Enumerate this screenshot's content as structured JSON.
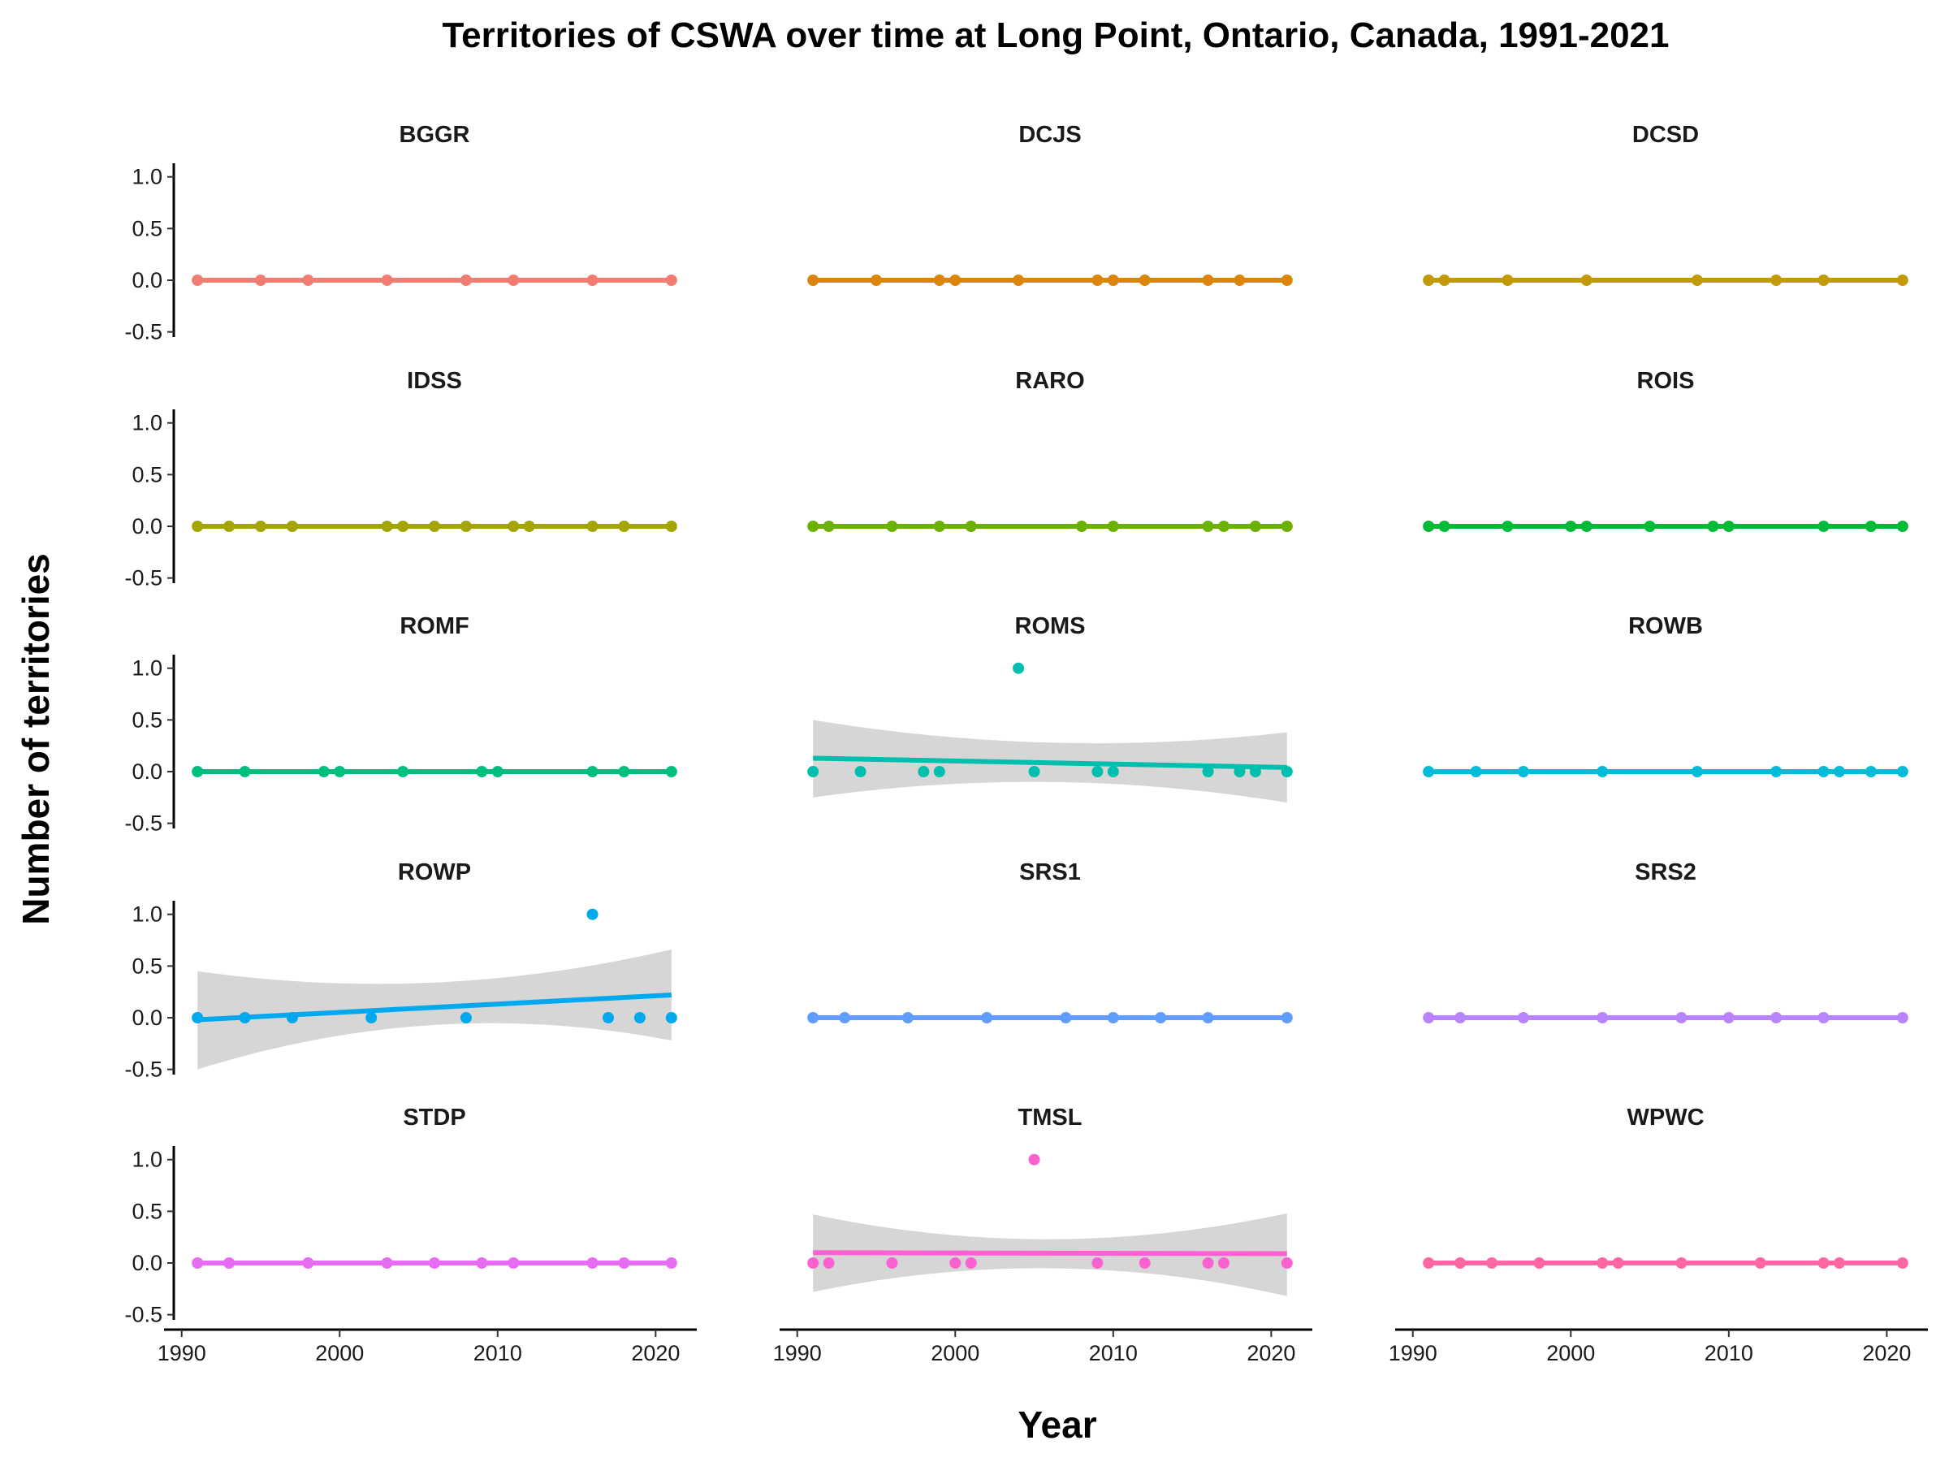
{
  "chart_data": {
    "type": "scatter",
    "title": "Territories of CSWA over time at Long Point, Ontario, Canada, 1991-2021",
    "xlabel": "Year",
    "ylabel": "Number of territories",
    "xlim": [
      1989.5,
      2022.5
    ],
    "ylim": [
      -0.55,
      1.1
    ],
    "x_ticks": [
      1990,
      2000,
      2010,
      2020
    ],
    "y_ticks": [
      1.0,
      0.5,
      0.0,
      -0.5
    ],
    "y_tick_labels": [
      "1.0",
      "0.5",
      "0.0",
      "-0.5"
    ],
    "grid": false,
    "legend": "none",
    "panels": [
      {
        "name": "BGGR",
        "color": "#F07C72",
        "x": [
          1991,
          1995,
          1998,
          2003,
          2008,
          2011,
          2016,
          2021
        ],
        "y": [
          0,
          0,
          0,
          0,
          0,
          0,
          0,
          0
        ],
        "trend": [
          0,
          0
        ],
        "band": null
      },
      {
        "name": "DCJS",
        "color": "#DB850D",
        "x": [
          1991,
          1995,
          1999,
          2000,
          2004,
          2009,
          2010,
          2012,
          2016,
          2018,
          2021
        ],
        "y": [
          0,
          0,
          0,
          0,
          0,
          0,
          0,
          0,
          0,
          0,
          0
        ],
        "trend": [
          0,
          0
        ],
        "band": null
      },
      {
        "name": "DCSD",
        "color": "#C29A06",
        "x": [
          1991,
          1992,
          1996,
          2001,
          2008,
          2013,
          2016,
          2021
        ],
        "y": [
          0,
          0,
          0,
          0,
          0,
          0,
          0,
          0
        ],
        "trend": [
          0,
          0
        ],
        "band": null
      },
      {
        "name": "IDSS",
        "color": "#A3A500",
        "x": [
          1991,
          1993,
          1995,
          1997,
          2003,
          2004,
          2006,
          2008,
          2011,
          2012,
          2016,
          2018,
          2021
        ],
        "y": [
          0,
          0,
          0,
          0,
          0,
          0,
          0,
          0,
          0,
          0,
          0,
          0,
          0
        ],
        "trend": [
          0,
          0
        ],
        "band": null
      },
      {
        "name": "RARO",
        "color": "#6BB100",
        "x": [
          1991,
          1992,
          1996,
          1999,
          2001,
          2008,
          2010,
          2016,
          2017,
          2019,
          2021
        ],
        "y": [
          0,
          0,
          0,
          0,
          0,
          0,
          0,
          0,
          0,
          0,
          0
        ],
        "trend": [
          0,
          0
        ],
        "band": null
      },
      {
        "name": "ROIS",
        "color": "#00BA38",
        "x": [
          1991,
          1992,
          1996,
          2000,
          2001,
          2005,
          2009,
          2010,
          2016,
          2019,
          2021
        ],
        "y": [
          0,
          0,
          0,
          0,
          0,
          0,
          0,
          0,
          0,
          0,
          0
        ],
        "trend": [
          0,
          0
        ],
        "band": null
      },
      {
        "name": "ROMF",
        "color": "#00BF7D",
        "x": [
          1991,
          1994,
          1999,
          2000,
          2004,
          2009,
          2010,
          2016,
          2018,
          2021
        ],
        "y": [
          0,
          0,
          0,
          0,
          0,
          0,
          0,
          0,
          0,
          0
        ],
        "trend": [
          0,
          0
        ],
        "band": null
      },
      {
        "name": "ROMS",
        "color": "#00BFAE",
        "x": [
          1991,
          1994,
          1998,
          1999,
          2004,
          2005,
          2009,
          2010,
          2016,
          2018,
          2019,
          2021
        ],
        "y": [
          0,
          0,
          0,
          0,
          1,
          0,
          0,
          0,
          0,
          0,
          0,
          0
        ],
        "trend": [
          0.13,
          0.04
        ],
        "band": {
          "upper": [
            0.5,
            0.28,
            0.38
          ],
          "lower": [
            -0.25,
            -0.1,
            -0.3
          ]
        }
      },
      {
        "name": "ROWB",
        "color": "#00BCD8",
        "x": [
          1991,
          1994,
          1997,
          2002,
          2008,
          2013,
          2016,
          2017,
          2019,
          2021
        ],
        "y": [
          0,
          0,
          0,
          0,
          0,
          0,
          0,
          0,
          0,
          0
        ],
        "trend": [
          0,
          0
        ],
        "band": null
      },
      {
        "name": "ROWP",
        "color": "#00A9EE",
        "x": [
          1991,
          1994,
          1997,
          2002,
          2008,
          2016,
          2017,
          2019,
          2021
        ],
        "y": [
          0,
          0,
          0,
          0,
          0,
          1,
          0,
          0,
          0
        ],
        "trend": [
          -0.02,
          0.22
        ],
        "band": {
          "upper": [
            0.45,
            0.34,
            0.66
          ],
          "lower": [
            -0.5,
            -0.07,
            -0.22
          ]
        }
      },
      {
        "name": "SRS1",
        "color": "#619CFF",
        "x": [
          1991,
          1993,
          1997,
          2002,
          2007,
          2010,
          2013,
          2016,
          2021
        ],
        "y": [
          0,
          0,
          0,
          0,
          0,
          0,
          0,
          0,
          0
        ],
        "trend": [
          0,
          0
        ],
        "band": null
      },
      {
        "name": "SRS2",
        "color": "#B983FF",
        "x": [
          1991,
          1993,
          1997,
          2002,
          2007,
          2010,
          2013,
          2016,
          2021
        ],
        "y": [
          0,
          0,
          0,
          0,
          0,
          0,
          0,
          0,
          0
        ],
        "trend": [
          0,
          0
        ],
        "band": null
      },
      {
        "name": "STDP",
        "color": "#E76BF3",
        "x": [
          1991,
          1993,
          1998,
          2003,
          2006,
          2009,
          2011,
          2016,
          2018,
          2021
        ],
        "y": [
          0,
          0,
          0,
          0,
          0,
          0,
          0,
          0,
          0,
          0
        ],
        "trend": [
          0,
          0
        ],
        "band": null
      },
      {
        "name": "TMSL",
        "color": "#FD61D1",
        "x": [
          1991,
          1992,
          1996,
          2000,
          2001,
          2005,
          2009,
          2012,
          2016,
          2017,
          2021
        ],
        "y": [
          0,
          0,
          0,
          0,
          0,
          1,
          0,
          0,
          0,
          0,
          0
        ],
        "trend": [
          0.1,
          0.09
        ],
        "band": {
          "upper": [
            0.47,
            0.23,
            0.48
          ],
          "lower": [
            -0.28,
            -0.05,
            -0.32
          ]
        }
      },
      {
        "name": "WPWC",
        "color": "#FF67A4",
        "x": [
          1991,
          1993,
          1995,
          1998,
          2002,
          2003,
          2007,
          2012,
          2016,
          2017,
          2021
        ],
        "y": [
          0,
          0,
          0,
          0,
          0,
          0,
          0,
          0,
          0,
          0,
          0
        ],
        "trend": [
          0,
          0
        ],
        "band": null
      }
    ]
  }
}
